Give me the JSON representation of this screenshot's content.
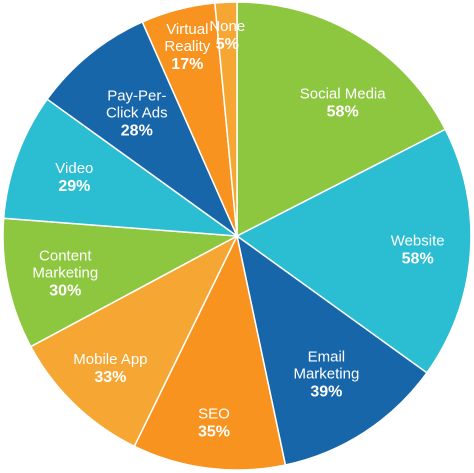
{
  "chart_data": {
    "type": "pie",
    "title": "",
    "legend": "none",
    "slices": [
      {
        "label": "Social Media",
        "value": 58,
        "display": "58%",
        "color": "#8dc63f"
      },
      {
        "label": "Website",
        "value": 58,
        "display": "58%",
        "color": "#2bbdd1"
      },
      {
        "label": "Email Marketing",
        "value": 39,
        "display": "39%",
        "color": "#1766a9"
      },
      {
        "label": "SEO",
        "value": 35,
        "display": "35%",
        "color": "#f7931e"
      },
      {
        "label": "Mobile App",
        "value": 33,
        "display": "33%",
        "color": "#f6a733"
      },
      {
        "label": "Content Marketing",
        "value": 30,
        "display": "30%",
        "color": "#8dc63f"
      },
      {
        "label": "Video",
        "value": 29,
        "display": "29%",
        "color": "#2bbdd1"
      },
      {
        "label": "Pay-Per-Click Ads",
        "value": 28,
        "display": "28%",
        "color": "#1766a9"
      },
      {
        "label": "Virtual Reality",
        "value": 17,
        "display": "17%",
        "color": "#f7931e"
      },
      {
        "label": "None",
        "value": 5,
        "display": "5%",
        "color": "#f6a733"
      }
    ]
  }
}
